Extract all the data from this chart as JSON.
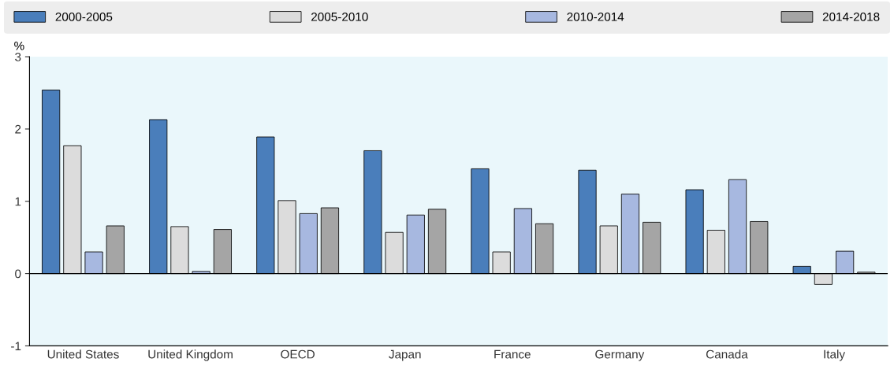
{
  "chart_data": {
    "type": "bar",
    "ylabel": "%",
    "categories": [
      "United States",
      "United Kingdom",
      "OECD",
      "Japan",
      "France",
      "Germany",
      "Canada",
      "Italy"
    ],
    "series": [
      {
        "name": "2000-2005",
        "color": "#4a7ebb",
        "values": [
          2.54,
          2.13,
          1.89,
          1.7,
          1.45,
          1.43,
          1.16,
          0.1
        ]
      },
      {
        "name": "2005-2010",
        "color": "#dcdcdc",
        "values": [
          1.77,
          0.65,
          1.01,
          0.57,
          0.3,
          0.66,
          0.6,
          -0.15
        ]
      },
      {
        "name": "2010-2014",
        "color": "#a7b8e0",
        "values": [
          0.3,
          0.03,
          0.83,
          0.81,
          0.9,
          1.1,
          1.3,
          0.31
        ]
      },
      {
        "name": "2014-2018",
        "color": "#a5a5a5",
        "values": [
          0.66,
          0.61,
          0.91,
          0.89,
          0.69,
          0.71,
          0.72,
          0.02
        ]
      }
    ],
    "ylim": [
      -1,
      3
    ],
    "yticks": [
      -1,
      0,
      1,
      2,
      3
    ],
    "grid": false,
    "legend": "top",
    "ref_lines": [
      {
        "axis": "y",
        "value": 0,
        "color": "#000000"
      }
    ]
  }
}
